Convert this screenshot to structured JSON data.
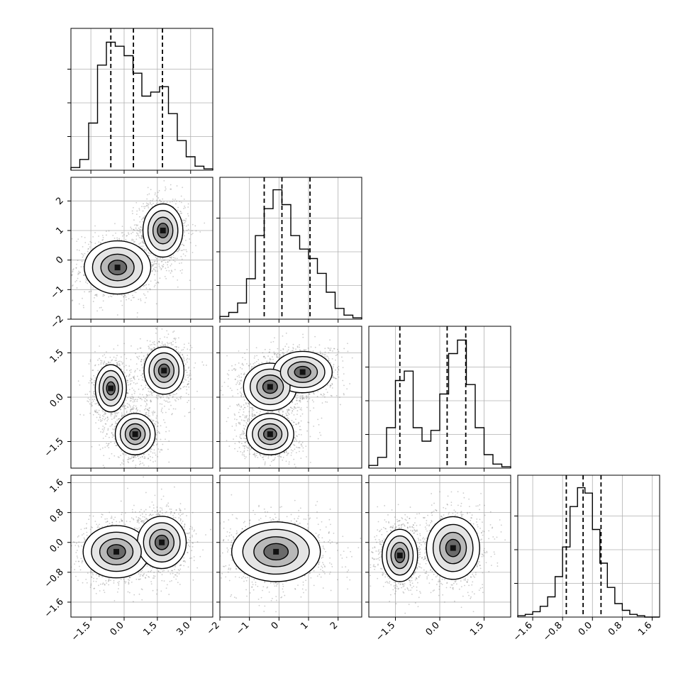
{
  "chart_data": {
    "type": "corner",
    "title": "",
    "n_params": 4,
    "grid": true,
    "params": [
      {
        "range": [
          -2.4,
          4.0
        ],
        "ticks": [
          -1.5,
          0.0,
          1.5,
          3.0
        ],
        "tick_labels": [
          "−1.5",
          "0.0",
          "1.5",
          "3.0"
        ],
        "quantiles": [
          -0.6,
          0.42,
          1.73
        ],
        "hist_x": [
          -2.4,
          -2.0,
          -1.6,
          -1.2,
          -0.8,
          -0.4,
          0.0,
          0.4,
          0.8,
          1.2,
          1.6,
          2.0,
          2.4,
          2.8,
          3.2,
          3.6
        ],
        "hist_y": [
          0.02,
          0.08,
          0.35,
          0.78,
          0.95,
          0.92,
          0.85,
          0.72,
          0.55,
          0.58,
          0.62,
          0.42,
          0.22,
          0.1,
          0.03,
          0.01
        ],
        "hist_ymax": 1.0
      },
      {
        "range": [
          -2.0,
          2.8
        ],
        "ticks": [
          -2,
          -1,
          0,
          1,
          2
        ],
        "tick_labels": [
          "−2",
          "−1",
          "0",
          "1",
          "2"
        ],
        "quantiles": [
          -0.5,
          0.1,
          1.05
        ],
        "hist_x": [
          -2.0,
          -1.7,
          -1.4,
          -1.1,
          -0.8,
          -0.5,
          -0.2,
          0.1,
          0.4,
          0.7,
          1.0,
          1.3,
          1.6,
          1.9,
          2.2,
          2.5
        ],
        "hist_y": [
          0.02,
          0.05,
          0.12,
          0.3,
          0.62,
          0.82,
          0.96,
          0.85,
          0.62,
          0.52,
          0.45,
          0.34,
          0.2,
          0.08,
          0.03,
          0.01
        ],
        "hist_ymax": 1.0
      },
      {
        "range": [
          -2.4,
          2.4
        ],
        "ticks": [
          -1.5,
          0.0,
          1.5
        ],
        "tick_labels": [
          "−1.5",
          "0.0",
          "1.5"
        ],
        "quantiles": [
          -1.35,
          0.25,
          0.88
        ],
        "hist_x": [
          -2.4,
          -2.1,
          -1.8,
          -1.5,
          -1.2,
          -0.9,
          -0.6,
          -0.3,
          0.0,
          0.3,
          0.6,
          0.9,
          1.2,
          1.5,
          1.8,
          2.1
        ],
        "hist_y": [
          0.02,
          0.08,
          0.3,
          0.65,
          0.72,
          0.3,
          0.2,
          0.28,
          0.55,
          0.85,
          0.95,
          0.62,
          0.3,
          0.1,
          0.03,
          0.01
        ],
        "hist_ymax": 1.0
      },
      {
        "range": [
          -2.0,
          1.8
        ],
        "ticks": [
          -1.6,
          -0.8,
          0.0,
          0.8,
          1.6
        ],
        "tick_labels": [
          "−1.6",
          "−0.8",
          "0.0",
          "0.8",
          "1.6"
        ],
        "quantiles": [
          -0.7,
          -0.25,
          0.23
        ],
        "hist_x": [
          -2.0,
          -1.8,
          -1.6,
          -1.4,
          -1.2,
          -1.0,
          -0.8,
          -0.6,
          -0.4,
          -0.2,
          0.0,
          0.2,
          0.4,
          0.6,
          0.8,
          1.0,
          1.2,
          1.4,
          1.6
        ],
        "hist_y": [
          0.01,
          0.02,
          0.04,
          0.08,
          0.15,
          0.3,
          0.52,
          0.82,
          0.96,
          0.92,
          0.65,
          0.4,
          0.22,
          0.1,
          0.05,
          0.02,
          0.01,
          0.0,
          0.0
        ],
        "hist_ymax": 1.0
      }
    ],
    "pairs": [
      {
        "x": 0,
        "y": 1,
        "modes": [
          [
            -0.3,
            -0.25,
            0.75,
            0.45
          ],
          [
            1.75,
            1.0,
            0.45,
            0.45
          ]
        ]
      },
      {
        "x": 0,
        "y": 2,
        "modes": [
          [
            -0.6,
            0.3,
            0.35,
            0.4
          ],
          [
            0.5,
            -1.25,
            0.45,
            0.35
          ],
          [
            1.8,
            0.9,
            0.45,
            0.4
          ]
        ]
      },
      {
        "x": 1,
        "y": 2,
        "modes": [
          [
            -0.3,
            0.35,
            0.45,
            0.4
          ],
          [
            0.8,
            0.85,
            0.5,
            0.35
          ],
          [
            -0.3,
            -1.25,
            0.4,
            0.35
          ]
        ]
      },
      {
        "x": 0,
        "y": 3,
        "modes": [
          [
            -0.35,
            -0.25,
            0.75,
            0.35
          ],
          [
            1.7,
            0.0,
            0.55,
            0.35
          ]
        ]
      },
      {
        "x": 1,
        "y": 3,
        "modes": [
          [
            -0.1,
            -0.25,
            0.75,
            0.4
          ]
        ]
      },
      {
        "x": 2,
        "y": 3,
        "modes": [
          [
            -1.35,
            -0.35,
            0.3,
            0.35
          ],
          [
            0.45,
            -0.15,
            0.45,
            0.42
          ]
        ]
      }
    ]
  }
}
